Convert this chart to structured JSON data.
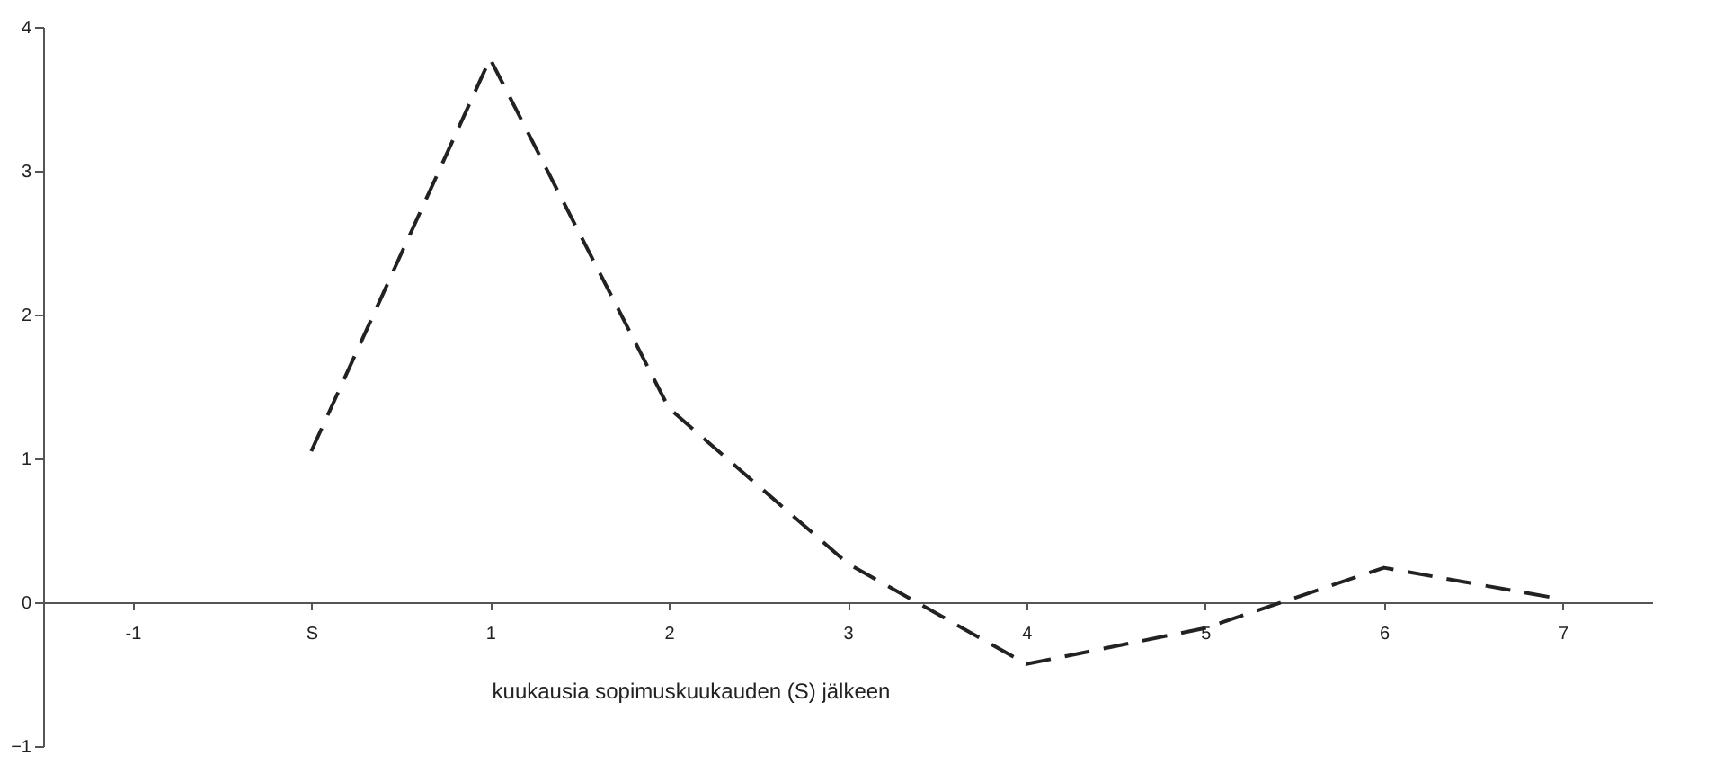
{
  "chart_data": {
    "type": "line",
    "xlabel": "kuukausia sopimuskuukauden (S) jälkeen",
    "categories": [
      "-1",
      "S",
      "1",
      "2",
      "3",
      "4",
      "5",
      "6",
      "7"
    ],
    "series": [
      {
        "color": "#222222",
        "values": [
          null,
          1.05,
          3.78,
          1.35,
          0.27,
          -0.43,
          -0.18,
          0.24,
          0.02
        ],
        "line_style": "dashed"
      }
    ],
    "ylim": [
      -1,
      4
    ],
    "yticks": [
      -1,
      0,
      1,
      2,
      3,
      4
    ],
    "grid": false,
    "legend": false,
    "marker": "none"
  }
}
